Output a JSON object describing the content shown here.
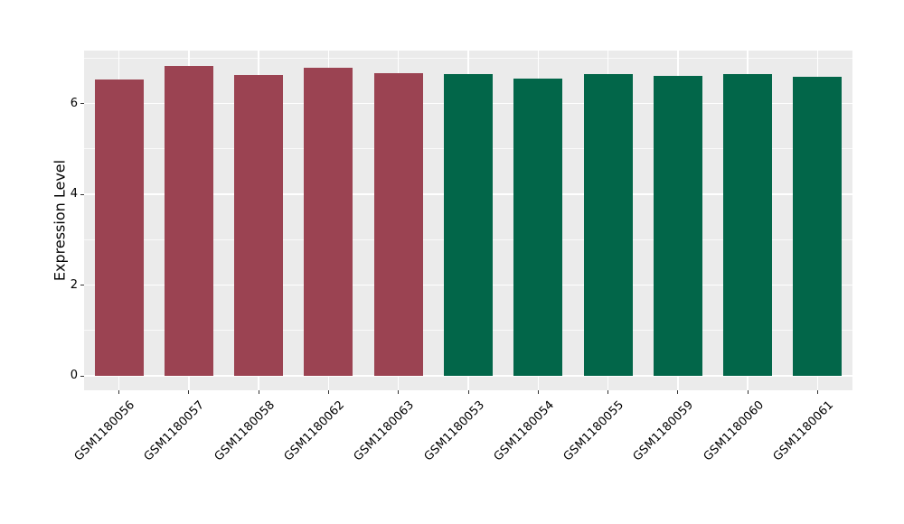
{
  "chart_data": {
    "type": "bar",
    "title": "",
    "xlabel": "",
    "ylabel": "Expression Level",
    "categories": [
      "GSM1180056",
      "GSM1180057",
      "GSM1180058",
      "GSM1180062",
      "GSM1180063",
      "GSM1180053",
      "GSM1180054",
      "GSM1180055",
      "GSM1180059",
      "GSM1180060",
      "GSM1180061"
    ],
    "values": [
      6.53,
      6.83,
      6.63,
      6.79,
      6.67,
      6.66,
      6.55,
      6.65,
      6.61,
      6.65,
      6.59
    ],
    "bar_colors": [
      "#9B4352",
      "#9B4352",
      "#9B4352",
      "#9B4352",
      "#9B4352",
      "#026649",
      "#026649",
      "#026649",
      "#026649",
      "#026649",
      "#026649"
    ],
    "group_colors": {
      "left_group": "#9B4352",
      "right_group": "#026649"
    },
    "ylim": [
      0,
      7.17
    ],
    "yticks": [
      0,
      2,
      4,
      6
    ],
    "yminor_gridlines": [
      1,
      3,
      5,
      7
    ],
    "x_label_rotation_deg": 45,
    "panel_background": "#EBEBEB",
    "gridline_color": "#FFFFFF",
    "tick_color": "#333333",
    "text_color": "#000000",
    "legend": "none",
    "grid": true
  }
}
